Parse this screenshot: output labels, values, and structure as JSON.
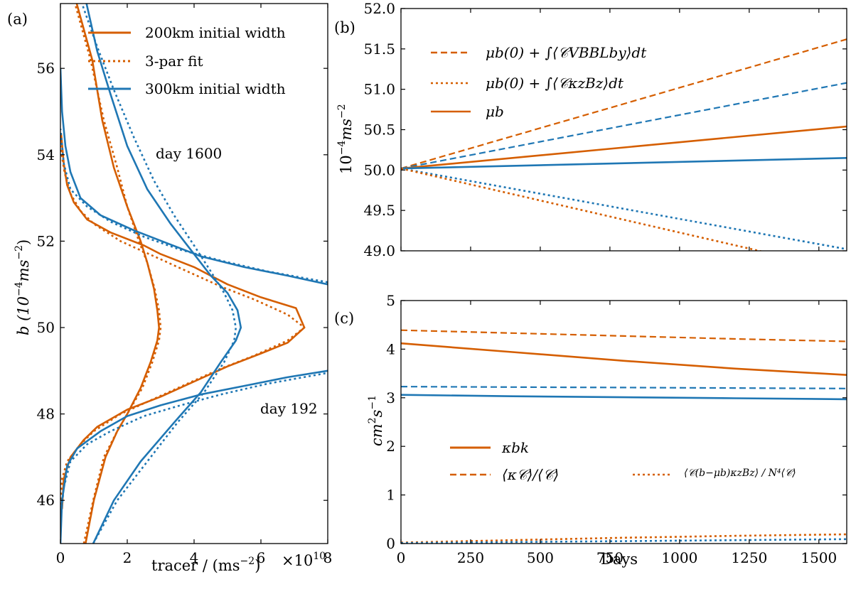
{
  "colors": {
    "orange": "#d55e00",
    "blue": "#1f77b4"
  },
  "chart_data": [
    {
      "panel": "(a)",
      "type": "line",
      "xlabel": "tracer / (ms",
      "xlabel_sup": "−2",
      "xlabel_tail": ")",
      "x_exponent_label": "×10",
      "x_exponent_sup": "10",
      "ylabel": "b (10",
      "ylabel_sup": "−4",
      "ylabel_tail": "ms",
      "ylabel_sup2": "−2",
      "ylabel_close": ")",
      "xlim": [
        0,
        8
      ],
      "ylim": [
        45,
        57.5
      ],
      "xticks": [
        0,
        2,
        4,
        6,
        8
      ],
      "xtick_labels": [
        "0",
        "2",
        "4",
        "6",
        "8"
      ],
      "yticks": [
        46,
        48,
        50,
        52,
        54,
        56
      ],
      "ytick_labels": [
        "46",
        "48",
        "50",
        "52",
        "54",
        "56"
      ],
      "legend": [
        {
          "label": "200km initial width",
          "color": "orange",
          "style": "solid"
        },
        {
          "label": "3-par fit",
          "color": "orange",
          "style": "dotted"
        },
        {
          "label": "300km initial width",
          "color": "blue",
          "style": "solid"
        }
      ],
      "annotations": [
        "day 1600",
        "day 192"
      ],
      "series": [
        {
          "color": "orange",
          "style": "solid",
          "points": [
            [
              0.75,
              45
            ],
            [
              1.0,
              46
            ],
            [
              1.35,
              47
            ],
            [
              1.7,
              47.6
            ],
            [
              2.0,
              48
            ],
            [
              2.4,
              48.6
            ],
            [
              2.7,
              49.2
            ],
            [
              2.9,
              49.7
            ],
            [
              2.95,
              50
            ],
            [
              2.9,
              50.4
            ],
            [
              2.8,
              50.9
            ],
            [
              2.6,
              51.5
            ],
            [
              2.4,
              52
            ],
            [
              2.0,
              52.8
            ],
            [
              1.6,
              53.7
            ],
            [
              1.25,
              54.8
            ],
            [
              0.95,
              56.2
            ],
            [
              0.45,
              57.6
            ]
          ]
        },
        {
          "color": "orange",
          "style": "dotted",
          "points": [
            [
              0.7,
              45
            ],
            [
              0.98,
              46
            ],
            [
              1.3,
              47
            ],
            [
              1.7,
              47.6
            ],
            [
              2.0,
              48
            ],
            [
              2.45,
              48.6
            ],
            [
              2.75,
              49.2
            ],
            [
              2.95,
              49.7
            ],
            [
              3.0,
              50
            ],
            [
              2.95,
              50.4
            ],
            [
              2.82,
              50.9
            ],
            [
              2.6,
              51.5
            ],
            [
              2.35,
              52
            ],
            [
              2.0,
              52.8
            ],
            [
              1.7,
              53.7
            ],
            [
              1.3,
              54.8
            ],
            [
              0.9,
              56.2
            ],
            [
              0.4,
              57.6
            ]
          ]
        },
        {
          "color": "orange",
          "style": "solid",
          "points": [
            [
              0.05,
              45.8
            ],
            [
              0.1,
              46.5
            ],
            [
              0.3,
              47.0
            ],
            [
              0.7,
              47.4
            ],
            [
              1.1,
              47.7
            ],
            [
              2.0,
              48.1
            ],
            [
              3.0,
              48.4
            ],
            [
              4.0,
              48.75
            ],
            [
              5.0,
              49.1
            ],
            [
              6.0,
              49.4
            ],
            [
              6.8,
              49.65
            ],
            [
              7.3,
              50
            ],
            [
              7.05,
              50.45
            ],
            [
              6.0,
              50.7
            ],
            [
              5.0,
              51.0
            ],
            [
              4.0,
              51.4
            ],
            [
              3.0,
              51.7
            ],
            [
              2.5,
              51.9
            ],
            [
              1.5,
              52.2
            ],
            [
              0.8,
              52.5
            ],
            [
              0.4,
              52.9
            ],
            [
              0.2,
              53.3
            ],
            [
              0.1,
              53.8
            ],
            [
              0.02,
              54.5
            ]
          ]
        },
        {
          "color": "orange",
          "style": "dotted",
          "points": [
            [
              0.0,
              45.9
            ],
            [
              0.05,
              46.5
            ],
            [
              0.2,
              46.9
            ],
            [
              0.6,
              47.3
            ],
            [
              1.0,
              47.6
            ],
            [
              1.8,
              48
            ],
            [
              2.8,
              48.35
            ],
            [
              3.8,
              48.7
            ],
            [
              4.8,
              49.05
            ],
            [
              5.8,
              49.35
            ],
            [
              6.8,
              49.7
            ],
            [
              7.3,
              50
            ],
            [
              6.8,
              50.3
            ],
            [
              5.8,
              50.65
            ],
            [
              4.8,
              50.95
            ],
            [
              3.8,
              51.3
            ],
            [
              2.8,
              51.65
            ],
            [
              1.8,
              52
            ],
            [
              1.0,
              52.4
            ],
            [
              0.6,
              52.7
            ],
            [
              0.3,
              53.1
            ],
            [
              0.12,
              53.6
            ],
            [
              0.0,
              54.2
            ]
          ]
        },
        {
          "color": "blue",
          "style": "solid",
          "points": [
            [
              0.98,
              45
            ],
            [
              1.6,
              46
            ],
            [
              2.4,
              46.9
            ],
            [
              3.4,
              47.8
            ],
            [
              4.2,
              48.5
            ],
            [
              4.8,
              49.2
            ],
            [
              5.25,
              49.7
            ],
            [
              5.4,
              50
            ],
            [
              5.3,
              50.4
            ],
            [
              5.0,
              50.8
            ],
            [
              4.5,
              51.2
            ],
            [
              3.9,
              51.8
            ],
            [
              3.3,
              52.4
            ],
            [
              2.6,
              53.2
            ],
            [
              2.0,
              54.2
            ],
            [
              1.5,
              55.4
            ],
            [
              1.1,
              56.4
            ],
            [
              0.75,
              57.6
            ]
          ]
        },
        {
          "color": "blue",
          "style": "dotted",
          "points": [
            [
              0.98,
              45
            ],
            [
              1.7,
              46
            ],
            [
              2.6,
              46.9
            ],
            [
              3.5,
              47.8
            ],
            [
              4.3,
              48.5
            ],
            [
              4.9,
              49.2
            ],
            [
              5.2,
              49.7
            ],
            [
              5.25,
              50
            ],
            [
              5.15,
              50.4
            ],
            [
              4.9,
              50.8
            ],
            [
              4.5,
              51.3
            ],
            [
              4.0,
              51.9
            ],
            [
              3.4,
              52.6
            ],
            [
              2.8,
              53.4
            ],
            [
              2.2,
              54.4
            ],
            [
              1.6,
              55.5
            ],
            [
              1.1,
              56.5
            ],
            [
              0.6,
              57.6
            ]
          ]
        },
        {
          "color": "blue",
          "style": "solid",
          "points": [
            [
              0.0,
              45
            ],
            [
              0.05,
              46
            ],
            [
              0.2,
              46.8
            ],
            [
              0.5,
              47.2
            ],
            [
              1.2,
              47.6
            ],
            [
              2.0,
              47.95
            ],
            [
              3.0,
              48.2
            ],
            [
              4.2,
              48.45
            ],
            [
              5.5,
              48.65
            ],
            [
              6.8,
              48.85
            ],
            [
              8.0,
              49.0
            ]
          ]
        },
        {
          "color": "blue",
          "style": "solid",
          "points": [
            [
              8.0,
              51.0
            ],
            [
              6.8,
              51.2
            ],
            [
              5.5,
              51.4
            ],
            [
              4.2,
              51.65
            ],
            [
              3.2,
              51.95
            ],
            [
              2.2,
              52.25
            ],
            [
              1.2,
              52.6
            ],
            [
              0.6,
              53.0
            ],
            [
              0.3,
              53.6
            ],
            [
              0.15,
              54.2
            ],
            [
              0.05,
              55.0
            ],
            [
              0.0,
              56.0
            ]
          ]
        },
        {
          "color": "blue",
          "style": "dotted",
          "points": [
            [
              0.0,
              45.5
            ],
            [
              0.1,
              46.3
            ],
            [
              0.3,
              46.9
            ],
            [
              0.8,
              47.3
            ],
            [
              1.5,
              47.6
            ],
            [
              2.5,
              47.95
            ],
            [
              3.6,
              48.2
            ],
            [
              4.8,
              48.45
            ],
            [
              6.2,
              48.7
            ],
            [
              8.0,
              48.95
            ]
          ]
        },
        {
          "color": "blue",
          "style": "dotted",
          "points": [
            [
              8.0,
              51.05
            ],
            [
              6.2,
              51.3
            ],
            [
              4.8,
              51.55
            ],
            [
              3.6,
              51.8
            ],
            [
              2.5,
              52.1
            ],
            [
              1.5,
              52.45
            ],
            [
              0.8,
              52.8
            ],
            [
              0.3,
              53.2
            ],
            [
              0.1,
              53.8
            ],
            [
              0.0,
              54.6
            ]
          ]
        }
      ]
    },
    {
      "panel": "(b)",
      "type": "line",
      "ylabel": "10",
      "ylabel_sup": "−4",
      "ylabel_tail": "ms",
      "ylabel_sup2": "−2",
      "xlim": [
        0,
        1600
      ],
      "ylim": [
        49.0,
        52.0
      ],
      "yticks": [
        49.0,
        49.5,
        50.0,
        50.5,
        51.0,
        51.5,
        52.0
      ],
      "ytick_labels": [
        "49.0",
        "49.5",
        "50.0",
        "50.5",
        "51.0",
        "51.5",
        "52.0"
      ],
      "legend": [
        {
          "label": "μb(0) + ∫⟨𝒞VBBLby⟩dt",
          "color": "orange",
          "style": "dashed"
        },
        {
          "label": "μb(0) + ∫⟨𝒞κzBz⟩dt",
          "color": "orange",
          "style": "dotted"
        },
        {
          "label": "μb",
          "color": "orange",
          "style": "solid"
        }
      ],
      "series": [
        {
          "color": "orange",
          "style": "dashed",
          "x": [
            0,
            1600
          ],
          "y": [
            50.02,
            51.62
          ]
        },
        {
          "color": "blue",
          "style": "dashed",
          "x": [
            0,
            1600
          ],
          "y": [
            50.02,
            51.08
          ]
        },
        {
          "color": "orange",
          "style": "solid",
          "x": [
            0,
            1600
          ],
          "y": [
            50.02,
            50.54
          ]
        },
        {
          "color": "blue",
          "style": "solid",
          "x": [
            0,
            1600
          ],
          "y": [
            50.02,
            50.15
          ]
        },
        {
          "color": "blue",
          "style": "dotted",
          "x": [
            0,
            1600
          ],
          "y": [
            50.02,
            49.02
          ]
        },
        {
          "color": "orange",
          "style": "dotted",
          "x": [
            0,
            1600
          ],
          "y": [
            50.02,
            48.75
          ]
        }
      ]
    },
    {
      "panel": "(c)",
      "type": "line",
      "xlabel": "Days",
      "ylabel": "cm",
      "ylabel_sup": "2",
      "ylabel_tail": "s",
      "ylabel_sup2": "−1",
      "xlim": [
        0,
        1600
      ],
      "ylim": [
        0,
        5
      ],
      "xticks": [
        0,
        250,
        500,
        750,
        1000,
        1250,
        1500
      ],
      "xtick_labels": [
        "0",
        "250",
        "500",
        "750",
        "1000",
        "1250",
        "1500"
      ],
      "yticks": [
        0,
        1,
        2,
        3,
        4,
        5
      ],
      "ytick_labels": [
        "0",
        "1",
        "2",
        "3",
        "4",
        "5"
      ],
      "legend": [
        {
          "label": "κbk",
          "color": "orange",
          "style": "solid"
        },
        {
          "label": "⟨κ𝒞⟩/⟨𝒞⟩",
          "color": "orange",
          "style": "dashed"
        },
        {
          "label": "⟨𝒞(b−μb)κzBz⟩ / N⁴⟨𝒞⟩",
          "color": "orange",
          "style": "dotted"
        }
      ],
      "series": [
        {
          "color": "orange",
          "style": "dashed",
          "x": [
            0,
            400,
            800,
            1200,
            1600
          ],
          "y": [
            4.39,
            4.33,
            4.27,
            4.21,
            4.16
          ]
        },
        {
          "color": "orange",
          "style": "solid",
          "x": [
            0,
            400,
            800,
            1200,
            1600
          ],
          "y": [
            4.12,
            3.94,
            3.76,
            3.6,
            3.47
          ]
        },
        {
          "color": "blue",
          "style": "dashed",
          "x": [
            0,
            400,
            800,
            1200,
            1600
          ],
          "y": [
            3.23,
            3.22,
            3.21,
            3.2,
            3.19
          ]
        },
        {
          "color": "blue",
          "style": "solid",
          "x": [
            0,
            400,
            800,
            1200,
            1600
          ],
          "y": [
            3.06,
            3.03,
            3.01,
            2.99,
            2.97
          ]
        },
        {
          "color": "orange",
          "style": "dotted",
          "x": [
            0,
            400,
            800,
            1200,
            1600
          ],
          "y": [
            0.02,
            0.07,
            0.12,
            0.16,
            0.19
          ]
        },
        {
          "color": "blue",
          "style": "dotted",
          "x": [
            0,
            400,
            800,
            1200,
            1600
          ],
          "y": [
            0.01,
            0.03,
            0.05,
            0.07,
            0.09
          ]
        }
      ]
    }
  ]
}
